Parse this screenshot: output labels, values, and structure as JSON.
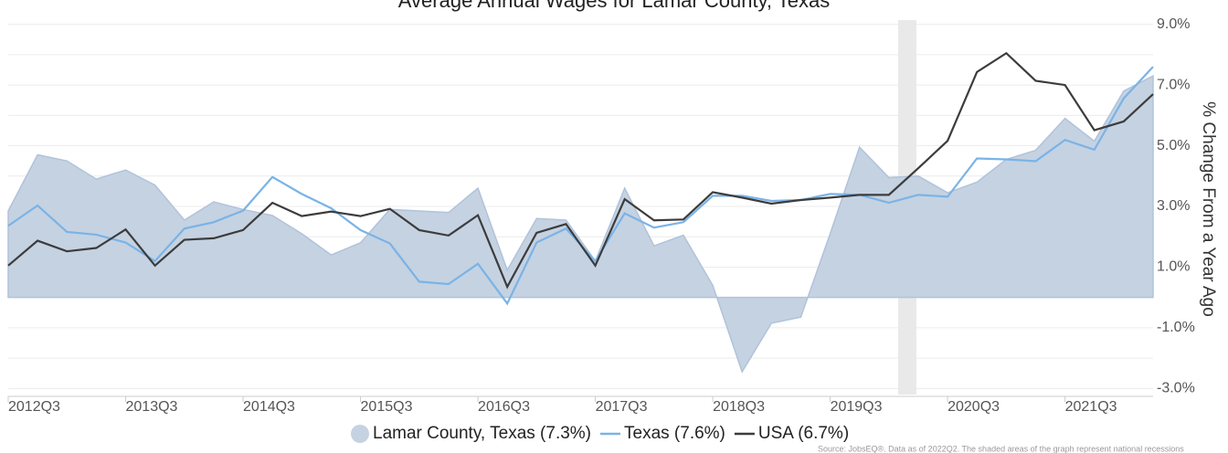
{
  "chart_data": {
    "type": "line",
    "title": "Average Annual Wages for Lamar County, Texas",
    "y_axis_label": "% Change From a Year Ago",
    "source": "Source: JobsEQ®. Data as of 2022Q2. The shaded areas of the graph represent national recessions",
    "categories": [
      "2012Q3",
      null,
      null,
      null,
      "2013Q3",
      null,
      null,
      null,
      "2014Q3",
      null,
      null,
      null,
      "2015Q3",
      null,
      null,
      null,
      "2016Q3",
      null,
      null,
      null,
      "2017Q3",
      null,
      null,
      null,
      "2018Q3",
      null,
      null,
      null,
      "2019Q3",
      null,
      null,
      null,
      "2020Q3",
      null,
      null,
      null,
      "2021Q3",
      null,
      null,
      null
    ],
    "series": [
      {
        "name": "Lamar County, Texas (7.3%)",
        "style": "area",
        "color": "#c5d2e2",
        "values": [
          2.85,
          4.7,
          4.5,
          3.9,
          4.2,
          3.7,
          2.55,
          3.15,
          2.9,
          2.7,
          2.1,
          1.4,
          1.8,
          2.9,
          2.85,
          2.8,
          3.6,
          0.9,
          2.6,
          2.55,
          1.2,
          3.6,
          1.7,
          2.05,
          0.4,
          -2.45,
          -0.85,
          -0.65,
          2.1,
          4.95,
          3.95,
          4.0,
          3.45,
          3.8,
          4.55,
          4.85,
          5.9,
          5.15,
          6.8,
          7.3
        ]
      },
      {
        "name": "Texas (7.6%)",
        "style": "line",
        "color": "#7ab3e6",
        "values": [
          2.36,
          3.03,
          2.16,
          2.07,
          1.81,
          1.2,
          2.27,
          2.48,
          2.86,
          3.97,
          3.41,
          2.94,
          2.22,
          1.78,
          0.52,
          0.44,
          1.11,
          -0.2,
          1.81,
          2.27,
          1.2,
          2.77,
          2.3,
          2.48,
          3.35,
          3.35,
          3.18,
          3.21,
          3.41,
          3.38,
          3.12,
          3.38,
          3.32,
          4.58,
          4.55,
          4.49,
          5.19,
          4.87,
          6.56,
          7.6
        ]
      },
      {
        "name": "USA (6.7%)",
        "style": "line",
        "color": "#3c3c3c",
        "values": [
          1.05,
          1.87,
          1.52,
          1.63,
          2.24,
          1.05,
          1.9,
          1.95,
          2.22,
          3.12,
          2.68,
          2.83,
          2.68,
          2.92,
          2.22,
          2.04,
          2.71,
          0.35,
          2.13,
          2.42,
          1.05,
          3.24,
          2.54,
          2.57,
          3.47,
          3.29,
          3.09,
          3.21,
          3.29,
          3.38,
          3.38,
          4.26,
          5.16,
          7.43,
          8.05,
          7.14,
          7.0,
          5.51,
          5.8,
          6.7
        ]
      }
    ],
    "ylim": [
      -3.2,
      9.2
    ],
    "yticks": [
      {
        "value": 9,
        "label": "9.0%"
      },
      {
        "value": 7,
        "label": "7.0%"
      },
      {
        "value": 5,
        "label": "5.0%"
      },
      {
        "value": 3,
        "label": "3.0%"
      },
      {
        "value": 1,
        "label": "1.0%"
      },
      {
        "value": -1,
        "label": "-1.0%"
      },
      {
        "value": -3,
        "label": "-3.0%"
      }
    ],
    "minor_yticks": [
      8,
      6,
      4,
      2,
      0,
      -2
    ],
    "grid": true,
    "legend": "bottom"
  }
}
